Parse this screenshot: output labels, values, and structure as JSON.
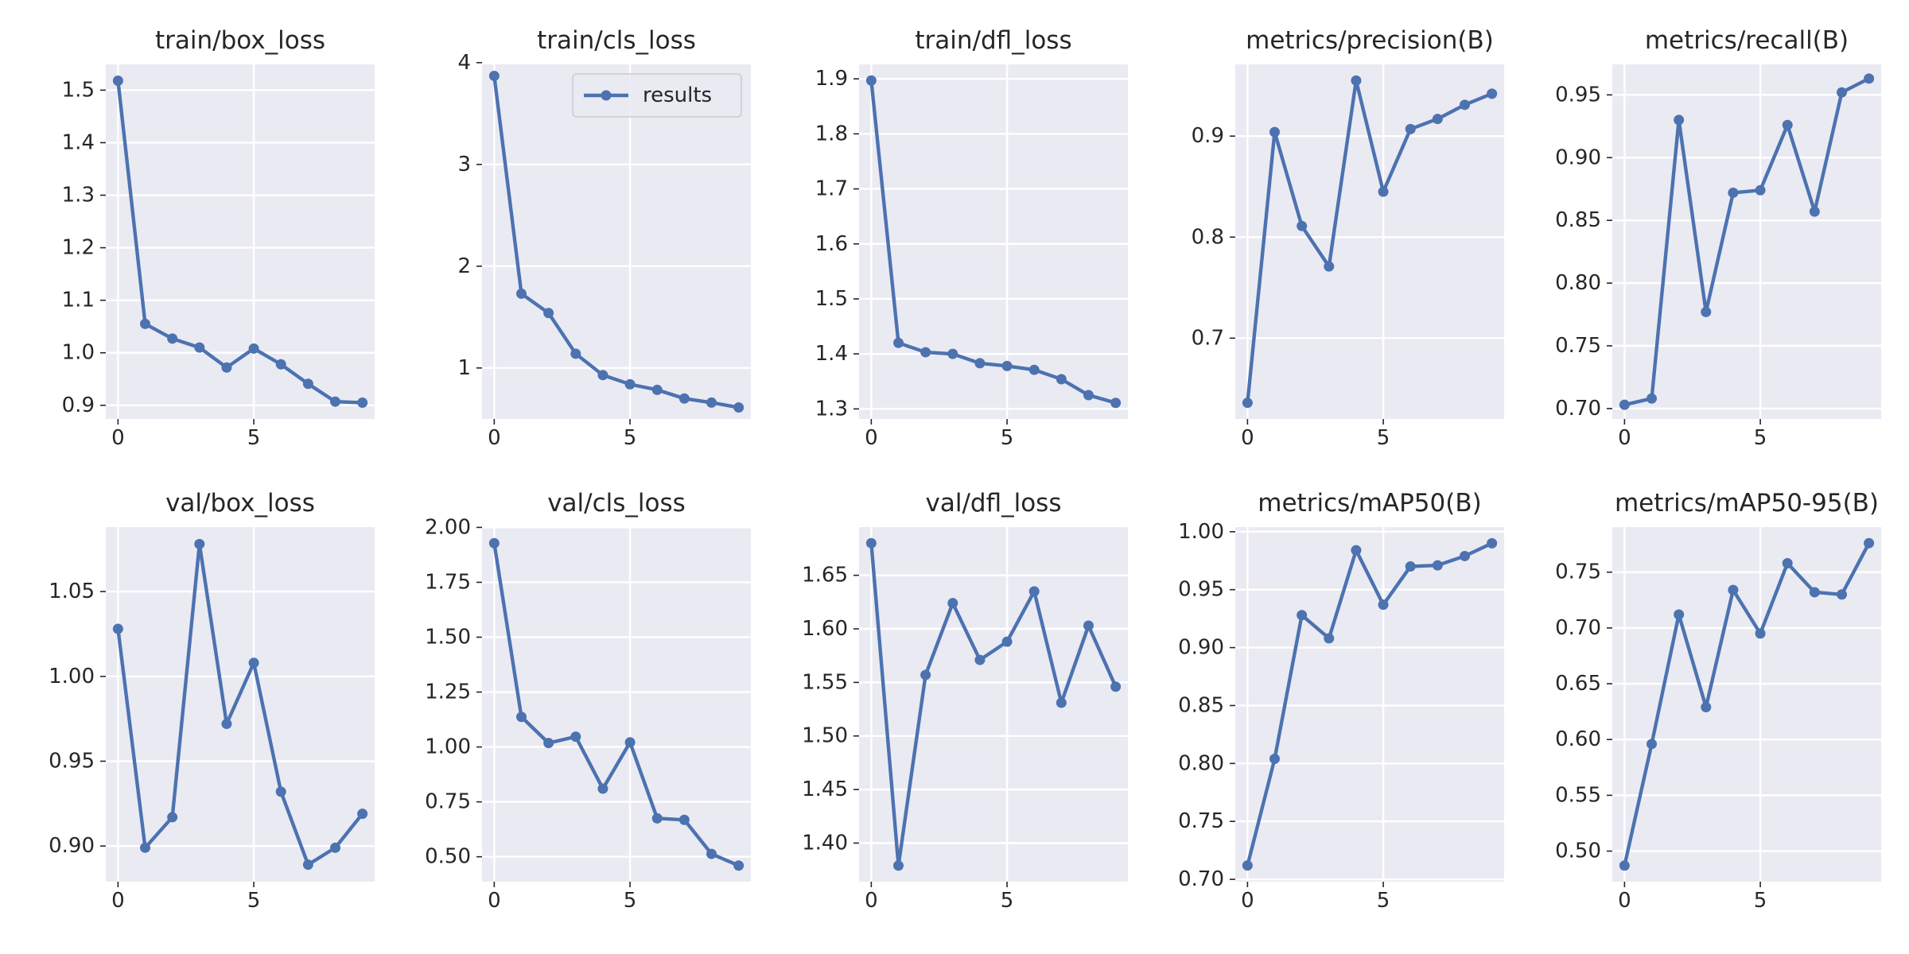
{
  "chart_data": [
    {
      "type": "line",
      "title": "train/box_loss",
      "x": [
        0,
        1,
        2,
        3,
        4,
        5,
        6,
        7,
        8,
        9
      ],
      "series": [
        {
          "name": "results",
          "values": [
            1.518,
            1.055,
            1.027,
            1.01,
            0.972,
            1.008,
            0.978,
            0.941,
            0.907,
            0.905
          ]
        }
      ],
      "xlim": [
        -0.45,
        9.45
      ],
      "ylim": [
        0.874,
        1.549
      ],
      "xticks": [
        0,
        5
      ],
      "yticks": [
        0.9,
        1.0,
        1.1,
        1.2,
        1.3,
        1.4,
        1.5
      ],
      "ytick_labels": [
        "0.9",
        "1.0",
        "1.1",
        "1.2",
        "1.3",
        "1.4",
        "1.5"
      ],
      "grid": true,
      "legend": null
    },
    {
      "type": "line",
      "title": "train/cls_loss",
      "x": [
        0,
        1,
        2,
        3,
        4,
        5,
        6,
        7,
        8,
        9
      ],
      "series": [
        {
          "name": "results",
          "values": [
            3.87,
            1.73,
            1.54,
            1.14,
            0.93,
            0.84,
            0.785,
            0.7,
            0.66,
            0.612
          ]
        }
      ],
      "xlim": [
        -0.45,
        9.45
      ],
      "ylim": [
        0.499,
        3.983
      ],
      "xticks": [
        0,
        5
      ],
      "yticks": [
        1,
        2,
        3,
        4
      ],
      "ytick_labels": [
        "1",
        "2",
        "3",
        "4"
      ],
      "grid": true,
      "legend": {
        "position": "upper-right",
        "label": "results"
      }
    },
    {
      "type": "line",
      "title": "train/dfl_loss",
      "x": [
        0,
        1,
        2,
        3,
        4,
        5,
        6,
        7,
        8,
        9
      ],
      "series": [
        {
          "name": "results",
          "values": [
            1.897,
            1.42,
            1.403,
            1.4,
            1.383,
            1.378,
            1.371,
            1.354,
            1.325,
            1.311
          ]
        }
      ],
      "xlim": [
        -0.45,
        9.45
      ],
      "ylim": [
        1.2817,
        1.9263
      ],
      "xticks": [
        0,
        5
      ],
      "yticks": [
        1.3,
        1.4,
        1.5,
        1.6,
        1.7,
        1.8,
        1.9
      ],
      "ytick_labels": [
        "1.3",
        "1.4",
        "1.5",
        "1.6",
        "1.7",
        "1.8",
        "1.9"
      ],
      "grid": true,
      "legend": null
    },
    {
      "type": "line",
      "title": "metrics/precision(B)",
      "x": [
        0,
        1,
        2,
        3,
        4,
        5,
        6,
        7,
        8,
        9
      ],
      "series": [
        {
          "name": "results",
          "values": [
            0.636,
            0.904,
            0.811,
            0.771,
            0.955,
            0.845,
            0.907,
            0.917,
            0.931,
            0.942
          ]
        }
      ],
      "xlim": [
        -0.45,
        9.45
      ],
      "ylim": [
        0.62,
        0.971
      ],
      "xticks": [
        0,
        5
      ],
      "yticks": [
        0.7,
        0.8,
        0.9
      ],
      "ytick_labels": [
        "0.7",
        "0.8",
        "0.9"
      ],
      "grid": true,
      "legend": null
    },
    {
      "type": "line",
      "title": "metrics/recall(B)",
      "x": [
        0,
        1,
        2,
        3,
        4,
        5,
        6,
        7,
        8,
        9
      ],
      "series": [
        {
          "name": "results",
          "values": [
            0.703,
            0.708,
            0.93,
            0.777,
            0.872,
            0.874,
            0.926,
            0.857,
            0.952,
            0.963
          ]
        }
      ],
      "xlim": [
        -0.45,
        9.45
      ],
      "ylim": [
        0.6917,
        0.9743
      ],
      "xticks": [
        0,
        5
      ],
      "yticks": [
        0.7,
        0.75,
        0.8,
        0.85,
        0.9,
        0.95
      ],
      "ytick_labels": [
        "0.70",
        "0.75",
        "0.80",
        "0.85",
        "0.90",
        "0.95"
      ],
      "grid": true,
      "legend": null
    },
    {
      "type": "line",
      "title": "val/box_loss",
      "x": [
        0,
        1,
        2,
        3,
        4,
        5,
        6,
        7,
        8,
        9
      ],
      "series": [
        {
          "name": "results",
          "values": [
            1.028,
            0.899,
            0.917,
            1.078,
            0.972,
            1.008,
            0.932,
            0.889,
            0.899,
            0.919
          ]
        }
      ],
      "xlim": [
        -0.45,
        9.45
      ],
      "ylim": [
        0.879,
        1.088
      ],
      "xticks": [
        0,
        5
      ],
      "yticks": [
        0.9,
        0.95,
        1.0,
        1.05
      ],
      "ytick_labels": [
        "0.90",
        "0.95",
        "1.00",
        "1.05"
      ],
      "grid": true,
      "legend": null
    },
    {
      "type": "line",
      "title": "val/cls_loss",
      "x": [
        0,
        1,
        2,
        3,
        4,
        5,
        6,
        7,
        8,
        9
      ],
      "series": [
        {
          "name": "results",
          "values": [
            1.928,
            1.137,
            1.018,
            1.047,
            0.81,
            1.021,
            0.675,
            0.668,
            0.513,
            0.46
          ]
        }
      ],
      "xlim": [
        -0.45,
        9.45
      ],
      "ylim": [
        0.3866,
        2.0014
      ],
      "xticks": [
        0,
        5
      ],
      "yticks": [
        0.5,
        0.75,
        1.0,
        1.25,
        1.5,
        1.75,
        2.0
      ],
      "ytick_labels": [
        "0.50",
        "0.75",
        "1.00",
        "1.25",
        "1.50",
        "1.75",
        "2.00"
      ],
      "grid": true,
      "legend": null
    },
    {
      "type": "line",
      "title": "val/dfl_loss",
      "x": [
        0,
        1,
        2,
        3,
        4,
        5,
        6,
        7,
        8,
        9
      ],
      "series": [
        {
          "name": "results",
          "values": [
            1.68,
            1.379,
            1.557,
            1.624,
            1.571,
            1.588,
            1.635,
            1.531,
            1.603,
            1.546
          ]
        }
      ],
      "xlim": [
        -0.45,
        9.45
      ],
      "ylim": [
        1.364,
        1.695
      ],
      "xticks": [
        0,
        5
      ],
      "yticks": [
        1.4,
        1.45,
        1.5,
        1.55,
        1.6,
        1.65
      ],
      "ytick_labels": [
        "1.40",
        "1.45",
        "1.50",
        "1.55",
        "1.60",
        "1.65"
      ],
      "grid": true,
      "legend": null
    },
    {
      "type": "line",
      "title": "metrics/mAP50(B)",
      "x": [
        0,
        1,
        2,
        3,
        4,
        5,
        6,
        7,
        8,
        9
      ],
      "series": [
        {
          "name": "results",
          "values": [
            0.712,
            0.804,
            0.928,
            0.908,
            0.984,
            0.937,
            0.97,
            0.971,
            0.979,
            0.99
          ]
        }
      ],
      "xlim": [
        -0.45,
        9.45
      ],
      "ylim": [
        0.698,
        1.004
      ],
      "xticks": [
        0,
        5
      ],
      "yticks": [
        0.7,
        0.75,
        0.8,
        0.85,
        0.9,
        0.95,
        1.0
      ],
      "ytick_labels": [
        "0.70",
        "0.75",
        "0.80",
        "0.85",
        "0.90",
        "0.95",
        "1.00"
      ],
      "grid": true,
      "legend": null
    },
    {
      "type": "line",
      "title": "metrics/mAP50-95(B)",
      "x": [
        0,
        1,
        2,
        3,
        4,
        5,
        6,
        7,
        8,
        9
      ],
      "series": [
        {
          "name": "results",
          "values": [
            0.487,
            0.596,
            0.712,
            0.629,
            0.734,
            0.695,
            0.758,
            0.732,
            0.73,
            0.776
          ]
        }
      ],
      "xlim": [
        -0.45,
        9.45
      ],
      "ylim": [
        0.4726,
        0.7904
      ],
      "xticks": [
        0,
        5
      ],
      "yticks": [
        0.5,
        0.55,
        0.6,
        0.65,
        0.7,
        0.75
      ],
      "ytick_labels": [
        "0.50",
        "0.55",
        "0.60",
        "0.65",
        "0.70",
        "0.75"
      ],
      "grid": true,
      "legend": null
    }
  ],
  "style": {
    "line_color": "#4c72b0",
    "plot_background": "#eaeaf2",
    "grid_color": "#ffffff",
    "text_color": "#262626"
  }
}
